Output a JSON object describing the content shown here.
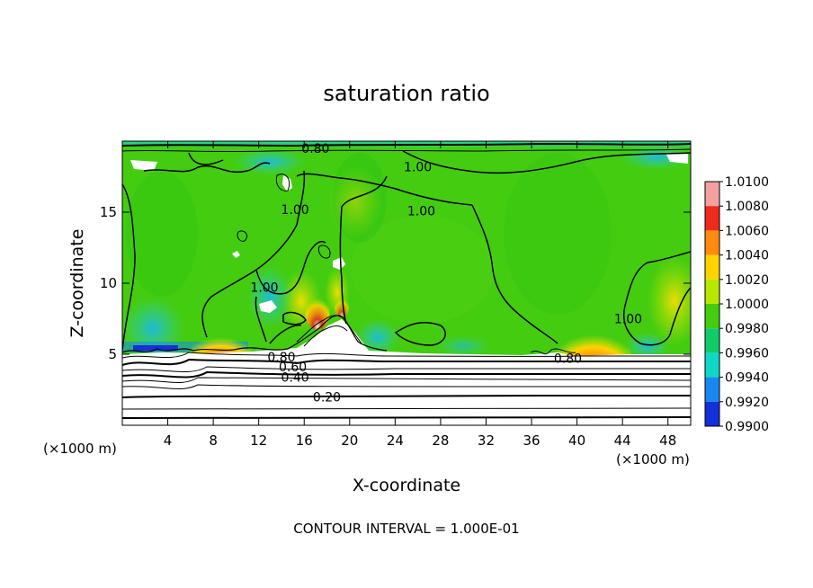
{
  "chart_data": {
    "type": "heatmap",
    "title": "saturation ratio",
    "xlabel": "X-coordinate",
    "ylabel": "Z-coordinate",
    "x_unit_left": "(×1000 m)",
    "x_unit_right": "(×1000 m)",
    "footer": "CONTOUR INTERVAL = 1.000E-01",
    "xlim": [
      0,
      50
    ],
    "ylim": [
      0,
      20
    ],
    "x_ticks": [
      4,
      8,
      12,
      16,
      20,
      24,
      28,
      32,
      36,
      40,
      44,
      48
    ],
    "y_ticks": [
      5,
      10,
      15
    ],
    "colorbar": {
      "labels": [
        "1.0100",
        "1.0080",
        "1.0060",
        "1.0040",
        "1.0020",
        "1.0000",
        "0.9980",
        "0.9960",
        "0.9940",
        "0.9920",
        "0.9900"
      ],
      "colors": [
        "#f4a0a0",
        "#ee2a1c",
        "#ff8a10",
        "#ffd200",
        "#b8e800",
        "#44cc10",
        "#10cc68",
        "#10d8c8",
        "#1888f0",
        "#1430d8",
        "#5010b0"
      ]
    },
    "contour_labels": [
      {
        "text": "0.20",
        "x": 18,
        "y": 2.0
      },
      {
        "text": "0.40",
        "x": 15.2,
        "y": 3.4
      },
      {
        "text": "0.60",
        "x": 15,
        "y": 4.1
      },
      {
        "text": "0.80",
        "x": 14,
        "y": 4.8
      },
      {
        "text": "0.80",
        "x": 39.2,
        "y": 4.7
      },
      {
        "text": "0.80",
        "x": 17,
        "y": 19.5
      },
      {
        "text": "1.00",
        "x": 26,
        "y": 18.2
      },
      {
        "text": "1.00",
        "x": 26.3,
        "y": 15.1
      },
      {
        "text": "1.00",
        "x": 15.2,
        "y": 15.2
      },
      {
        "text": "1.00",
        "x": 12.5,
        "y": 9.7
      },
      {
        "text": "1.00",
        "x": 44.5,
        "y": 7.5
      }
    ]
  }
}
